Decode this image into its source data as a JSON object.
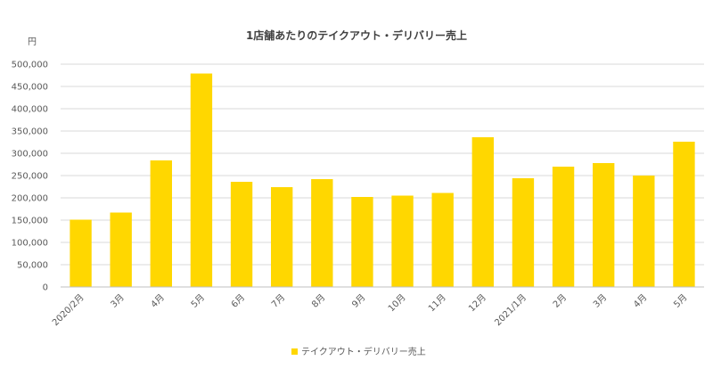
{
  "chart_data": {
    "type": "bar",
    "title": "1店舗あたりのテイクアウト・デリバリー売上",
    "unit_label": "円",
    "categories": [
      "2020/2月",
      "3月",
      "4月",
      "5月",
      "6月",
      "7月",
      "8月",
      "9月",
      "10月",
      "11月",
      "12月",
      "2021/1月",
      "2月",
      "3月",
      "4月",
      "5月"
    ],
    "series": [
      {
        "name": "テイクアウト・デリバリー売上",
        "color": "#FFD700",
        "values": [
          151000,
          167000,
          284000,
          479000,
          236000,
          224000,
          242000,
          202000,
          205000,
          211000,
          336000,
          244000,
          270000,
          278000,
          250000,
          326000
        ]
      }
    ],
    "ylim": [
      0,
      500000
    ],
    "yticks": [
      "0",
      "50,000",
      "100,000",
      "150,000",
      "200,000",
      "250,000",
      "300,000",
      "350,000",
      "400,000",
      "450,000",
      "500,000"
    ],
    "grid": true,
    "legend_position": "bottom"
  }
}
